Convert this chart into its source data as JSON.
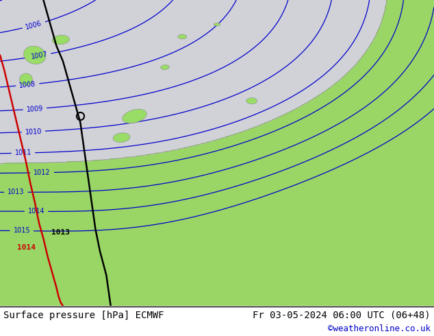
{
  "title_left": "Surface pressure [hPa] ECMWF",
  "title_right": "Fr 03-05-2024 06:00 UTC (06+48)",
  "credit": "©weatheronline.co.uk",
  "bg_color_land": "#99dd66",
  "bg_color_sea": "#d8d8e8",
  "isobar_color": "#0000cc",
  "warm_front_color": "#cc0000",
  "cold_front_color": "#000000",
  "coast_color": "#888888",
  "footer_bg": "#ffffff",
  "footer_text_color": "#000000",
  "credit_color": "#0000cc"
}
